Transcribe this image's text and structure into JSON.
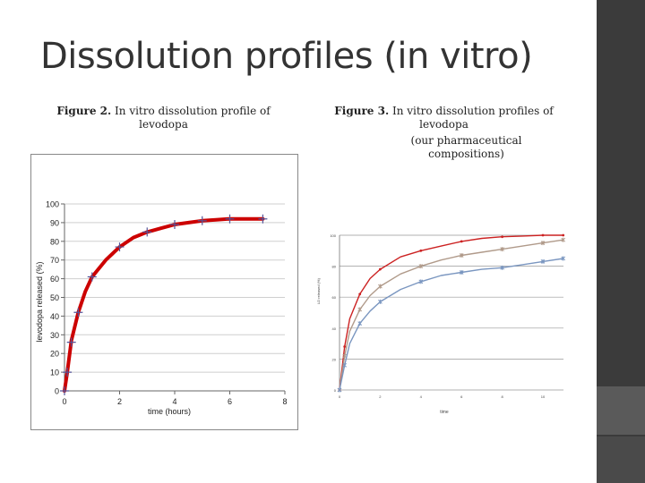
{
  "slide": {
    "title": "Dissolution profiles (in vitro)"
  },
  "figure2": {
    "caption_prefix": "Figure 2.",
    "caption_text": "In vitro dissolution profile of levodopa"
  },
  "figure3": {
    "caption_prefix": "Figure 3.",
    "caption_text": "In vitro dissolution profiles of levodopa",
    "caption_line3": "(our pharmaceutical compositions)"
  },
  "chart_data": [
    {
      "type": "line",
      "title": "",
      "xlabel": "time (hours)",
      "ylabel": "levodopa released (%)",
      "xlim": [
        0,
        8
      ],
      "ylim": [
        0,
        100
      ],
      "x_ticks": [
        "0",
        "2",
        "4",
        "6",
        "8"
      ],
      "y_ticks": [
        "0",
        "10",
        "20",
        "30",
        "40",
        "50",
        "60",
        "70",
        "80",
        "90",
        "100"
      ],
      "grid": true,
      "legend": "none",
      "series": [
        {
          "color": "#cc0000",
          "x": [
            0,
            0.1,
            0.25,
            0.5,
            0.75,
            1,
            1.5,
            2,
            2.5,
            3,
            3.5,
            4,
            4.5,
            5,
            5.5,
            6,
            6.5,
            7.2
          ],
          "y": [
            0,
            10,
            27,
            42,
            53,
            61,
            70,
            77,
            82,
            85,
            87,
            89,
            90,
            91,
            91.5,
            92,
            92,
            92
          ]
        }
      ],
      "markers": {
        "symbol": "plus",
        "color": "#555599",
        "x": [
          0,
          0.1,
          0.25,
          0.5,
          1,
          2,
          3,
          4,
          5,
          6,
          7.2
        ],
        "y": [
          0,
          10,
          26,
          42,
          61,
          77,
          85,
          89,
          91,
          92,
          92
        ]
      }
    },
    {
      "type": "line",
      "title": "",
      "xlabel": "time",
      "ylabel": "LD released (%)",
      "xlim": [
        0,
        10
      ],
      "ylim": [
        0,
        100
      ],
      "x_ticks": [
        "0",
        "2",
        "4",
        "6",
        "8",
        "10"
      ],
      "y_ticks": [
        "0",
        "20",
        "40",
        "60",
        "80",
        "100"
      ],
      "grid": true,
      "legend": "none",
      "series": [
        {
          "color": "#cc2222",
          "x": [
            0,
            0.25,
            0.5,
            1,
            1.5,
            2,
            3,
            4,
            5,
            6,
            7,
            8,
            9,
            10,
            11
          ],
          "y": [
            0,
            28,
            46,
            62,
            72,
            78,
            86,
            90,
            93,
            96,
            98,
            99,
            99.5,
            100,
            100
          ]
        },
        {
          "color": "#b09a8a",
          "x": [
            0,
            0.25,
            0.5,
            1,
            1.5,
            2,
            3,
            4,
            5,
            6,
            7,
            8,
            9,
            10,
            11
          ],
          "y": [
            0,
            22,
            38,
            52,
            61,
            67,
            75,
            80,
            84,
            87,
            89,
            91,
            93,
            95,
            97
          ]
        },
        {
          "color": "#7a96c0",
          "x": [
            0,
            0.25,
            0.5,
            1,
            1.5,
            2,
            3,
            4,
            5,
            6,
            7,
            8,
            9,
            10,
            11
          ],
          "y": [
            0,
            16,
            30,
            43,
            51,
            57,
            65,
            70,
            74,
            76,
            78,
            79,
            81,
            83,
            85
          ]
        }
      ]
    }
  ]
}
